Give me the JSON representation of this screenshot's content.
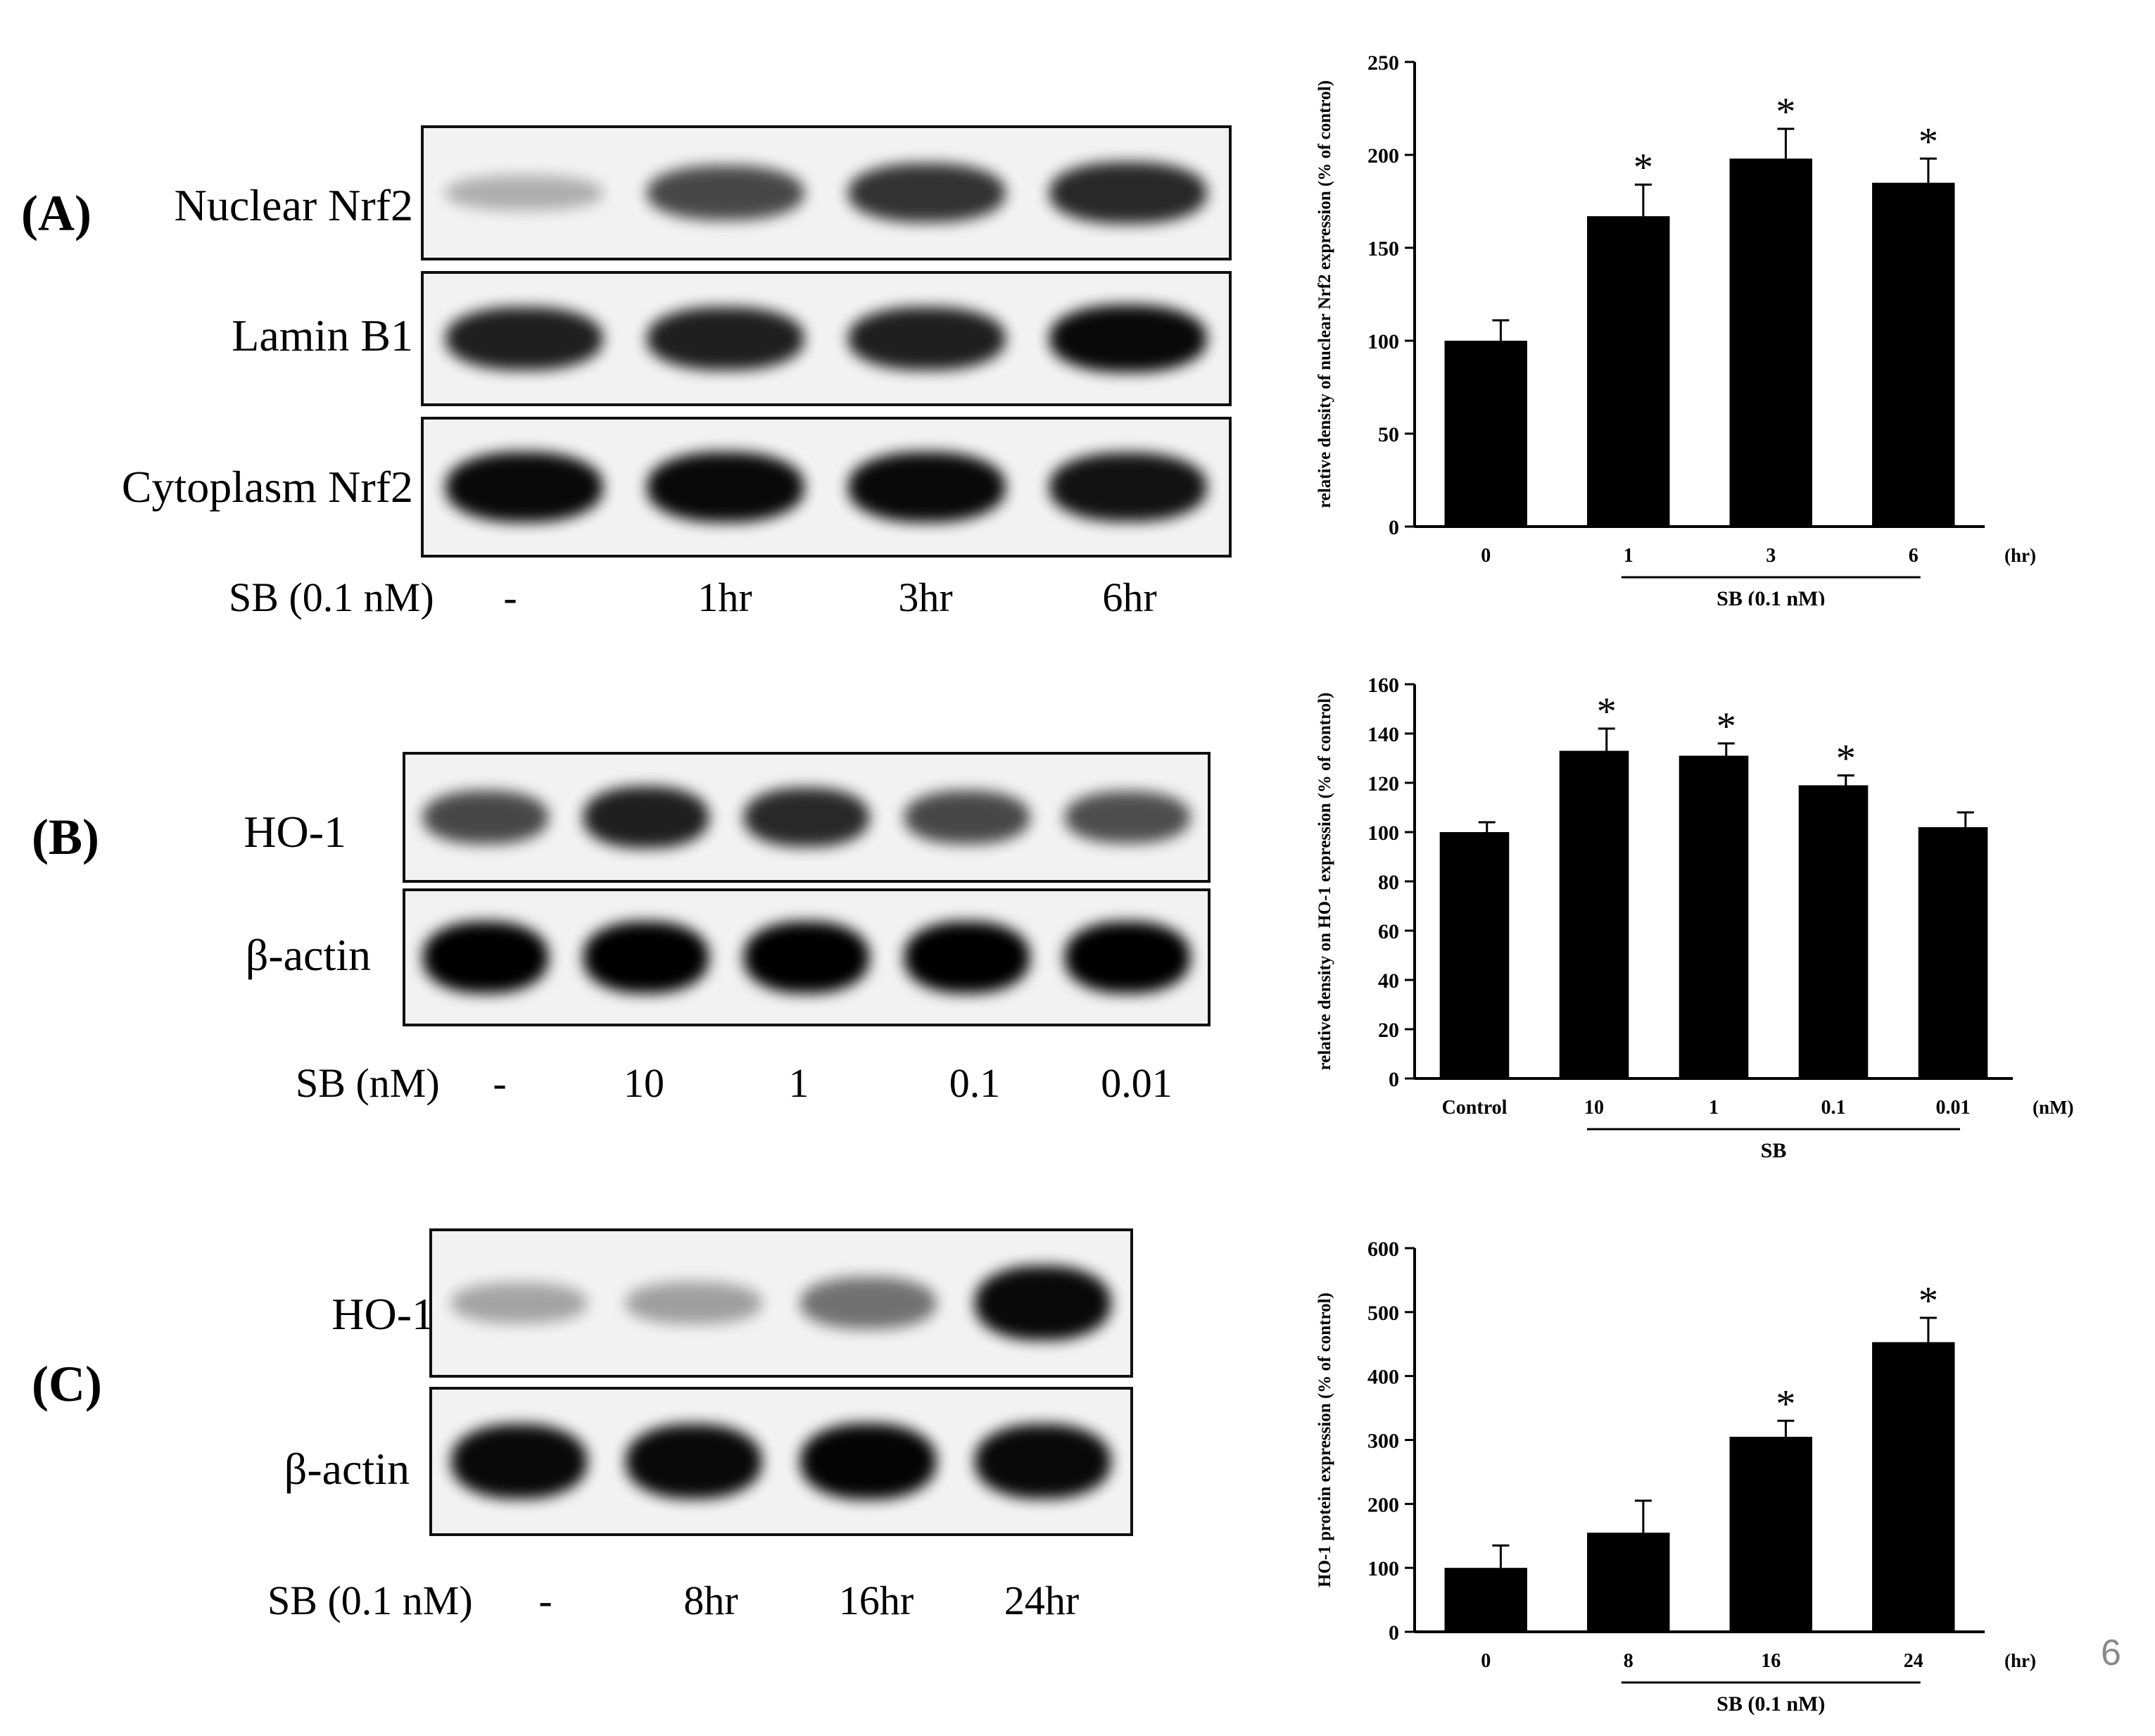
{
  "page_number": "6",
  "panels": [
    {
      "letter": "(A)",
      "blots": [
        {
          "label": "Nuclear Nrf2",
          "intensity": [
            0.15,
            0.65,
            0.75,
            0.8
          ]
        },
        {
          "label": "Lamin B1",
          "intensity": [
            0.85,
            0.85,
            0.85,
            0.95
          ]
        },
        {
          "label": "Cytoplasm  Nrf2",
          "intensity": [
            0.95,
            0.95,
            0.95,
            0.9
          ]
        }
      ],
      "condition": "SB (0.1  nM)",
      "lanes": [
        "-",
        "1hr",
        "3hr",
        "6hr"
      ]
    },
    {
      "letter": "(B)",
      "blots": [
        {
          "label": "HO-1",
          "intensity": [
            0.65,
            0.85,
            0.8,
            0.65,
            0.62
          ]
        },
        {
          "label": "β-actin",
          "intensity": [
            1.0,
            1.0,
            1.0,
            1.0,
            1.0
          ]
        }
      ],
      "condition": "SB (nM)",
      "lanes": [
        "-",
        "10",
        "1",
        "0.1",
        "0.01"
      ]
    },
    {
      "letter": "(C)",
      "blots": [
        {
          "label": "HO-1",
          "intensity": [
            0.2,
            0.22,
            0.45,
            0.95
          ]
        },
        {
          "label": "β-actin",
          "intensity": [
            0.95,
            0.95,
            0.98,
            0.95
          ]
        }
      ],
      "condition": "SB (0.1  nM)",
      "lanes": [
        "-",
        "8hr",
        "16hr",
        "24hr"
      ]
    }
  ],
  "chart_data": [
    {
      "type": "bar",
      "categories": [
        "0",
        "1",
        "3",
        "6"
      ],
      "values": [
        100,
        167,
        198,
        185
      ],
      "errors": [
        11,
        17,
        16,
        13
      ],
      "significant": [
        false,
        true,
        true,
        true
      ],
      "ylabel": "relative density of nuclear Nrf2 expression (% of control)",
      "ylim": [
        0,
        250
      ],
      "yticks": [
        0,
        50,
        100,
        150,
        200,
        250
      ],
      "unit": "(hr)",
      "group_label": "SB (0.1 nM)",
      "group_span": [
        1,
        3
      ]
    },
    {
      "type": "bar",
      "categories": [
        "Control",
        "10",
        "1",
        "0.1",
        "0.01"
      ],
      "values": [
        100,
        133,
        131,
        119,
        102
      ],
      "errors": [
        4,
        9,
        5,
        4,
        6
      ],
      "significant": [
        false,
        true,
        true,
        true,
        false
      ],
      "ylabel": "relative density on HO-1 expression (% of control)",
      "ylim": [
        0,
        160
      ],
      "yticks": [
        0,
        20,
        40,
        60,
        80,
        100,
        120,
        140,
        160
      ],
      "unit": "(nM)",
      "group_label": "SB",
      "group_span": [
        1,
        4
      ]
    },
    {
      "type": "bar",
      "categories": [
        "0",
        "8",
        "16",
        "24"
      ],
      "values": [
        100,
        155,
        305,
        453
      ],
      "errors": [
        35,
        50,
        25,
        38
      ],
      "significant": [
        false,
        false,
        true,
        true
      ],
      "ylabel": "HO-1 protein expression (% of control)",
      "ylim": [
        0,
        600
      ],
      "yticks": [
        0,
        100,
        200,
        300,
        400,
        500,
        600
      ],
      "unit": "(hr)",
      "group_label": "SB (0.1 nM)",
      "group_span": [
        1,
        3
      ]
    }
  ]
}
